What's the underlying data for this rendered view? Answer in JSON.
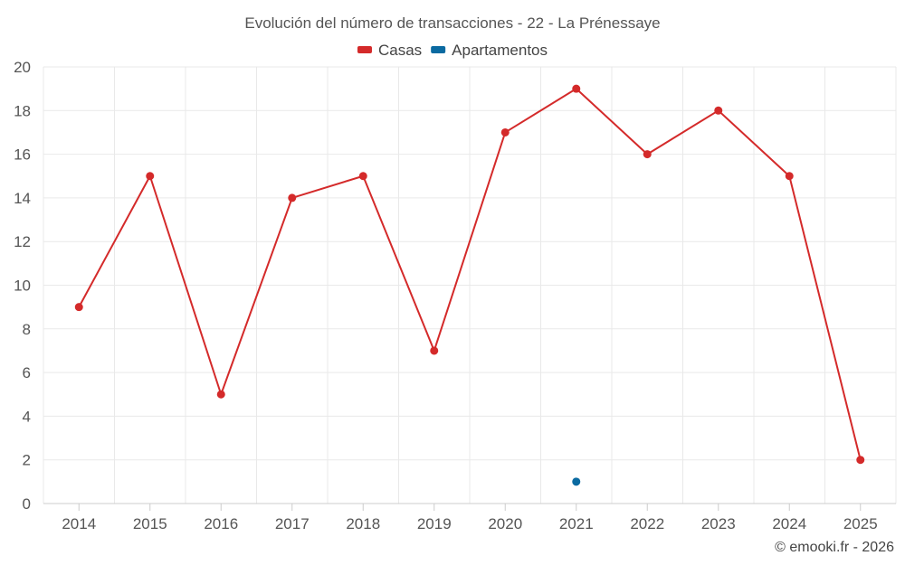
{
  "chart_data": {
    "type": "line",
    "title": "Evolución del número de transacciones - 22 - La Prénessaye",
    "categories": [
      "2014",
      "2015",
      "2016",
      "2017",
      "2018",
      "2019",
      "2020",
      "2021",
      "2022",
      "2023",
      "2024",
      "2025"
    ],
    "series": [
      {
        "name": "Casas",
        "color": "#d42a2a",
        "values": [
          9,
          15,
          5,
          14,
          15,
          7,
          17,
          19,
          16,
          18,
          15,
          2
        ]
      },
      {
        "name": "Apartamentos",
        "color": "#0a6aa1",
        "values": [
          null,
          null,
          null,
          null,
          null,
          null,
          null,
          1,
          null,
          null,
          null,
          null
        ]
      }
    ],
    "ylim": [
      0,
      20
    ],
    "yticks": [
      0,
      2,
      4,
      6,
      8,
      10,
      12,
      14,
      16,
      18,
      20
    ],
    "grid": true,
    "legend": "top-center"
  },
  "credit": "© emooki.fr - 2026"
}
